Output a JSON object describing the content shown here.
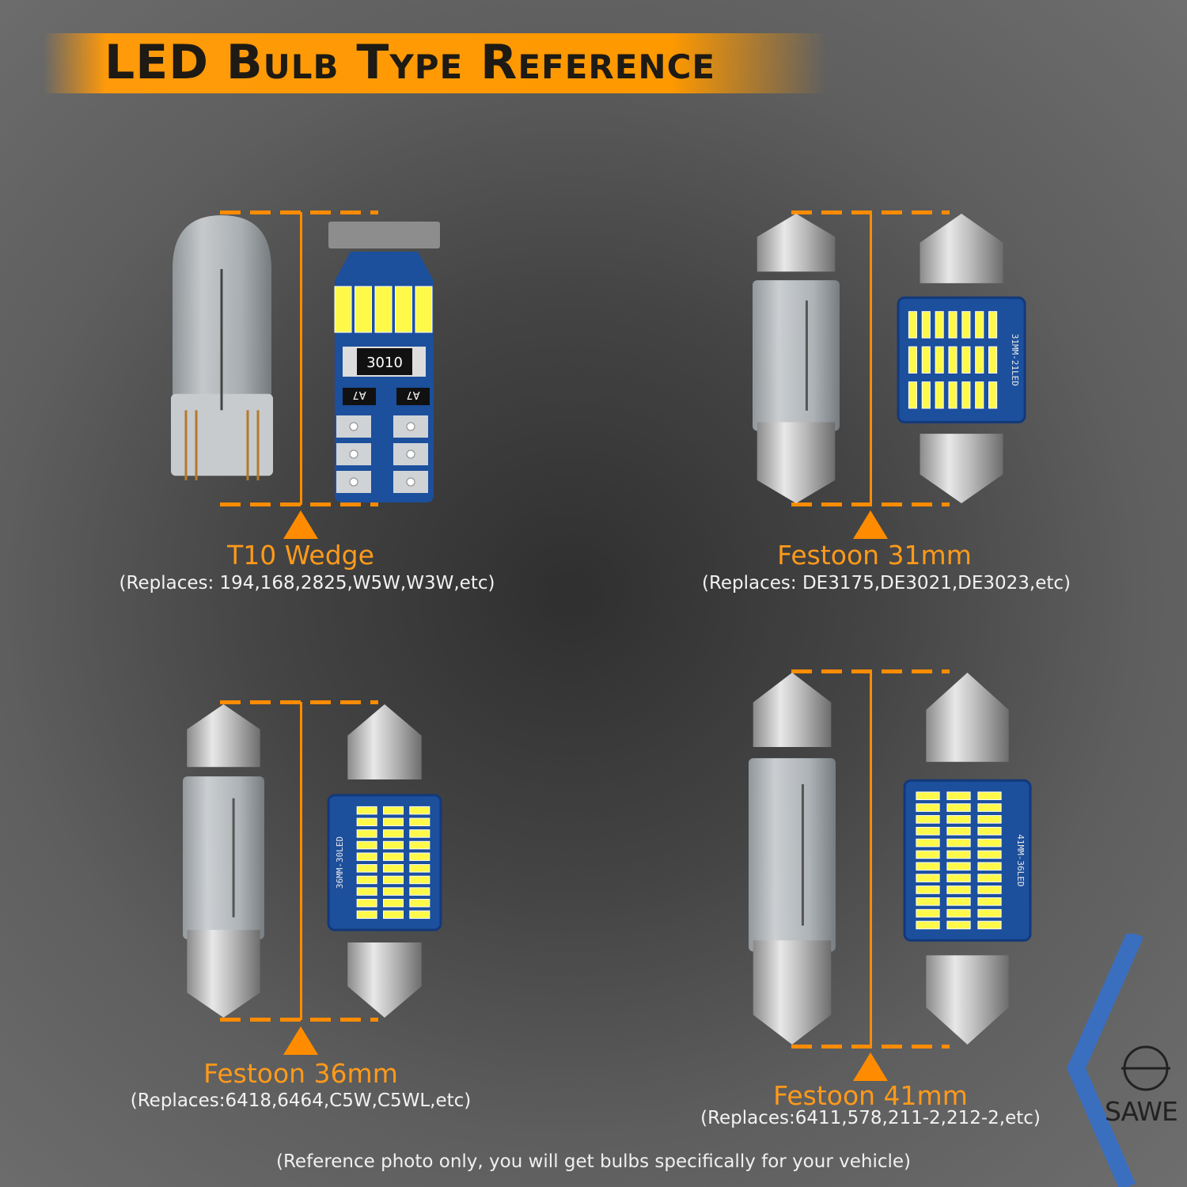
{
  "header": {
    "title": "LED Bulb Type Reference"
  },
  "bulbs": [
    {
      "name": "T10 Wedge",
      "replaces": "(Replaces: 194,168,2825,W5W,W3W,etc)",
      "board_labels": [
        "3010",
        "A7",
        "A7"
      ]
    },
    {
      "name": "Festoon 31mm",
      "replaces": "(Replaces: DE3175,DE3021,DE3023,etc)",
      "board_label": "31MM-21LED"
    },
    {
      "name": "Festoon 36mm",
      "replaces": "(Replaces:6418,6464,C5W,C5WL,etc)",
      "board_label": "36MM-30LED"
    },
    {
      "name": "Festoon 41mm",
      "replaces": "(Replaces:6411,578,211-2,212-2,etc)",
      "board_label": "41MM-36LED"
    }
  ],
  "footer": {
    "note": "(Reference photo only, you will get bulbs specifically for your vehicle)"
  },
  "brand": {
    "logo_text": "SAWE"
  },
  "colors": {
    "accent": "#ff8c00",
    "label": "#ff9a1a",
    "pcb": "#1c4f9c",
    "led": "#fff94a",
    "logo_stripe": "#3a6fc0"
  }
}
